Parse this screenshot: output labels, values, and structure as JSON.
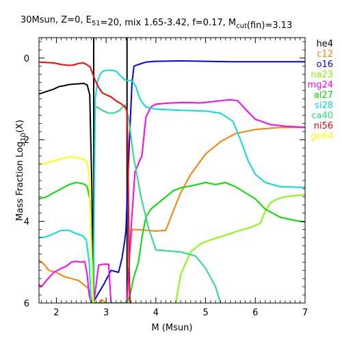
{
  "chart_data": {
    "type": "line",
    "title": "30Msun, Z=0, E51=20, mix 1.65-3.42, f=0.17, Mcut(fin)=3.13",
    "xlabel": "M (Msun)",
    "ylabel": "Mass Fraction Log10(X)",
    "xlim": [
      1.65,
      7
    ],
    "ylim": [
      -6,
      0.5
    ],
    "xticks": [
      2,
      3,
      4,
      5,
      6,
      7
    ],
    "yticks": [
      0,
      -2,
      -4,
      -6
    ],
    "ytick_labels": [
      "0",
      "2",
      "4",
      "6"
    ],
    "grid": false,
    "legend_position": "right",
    "vlines": [
      2.75,
      3.42
    ],
    "series": [
      {
        "name": "he4",
        "color": "#000000",
        "x": [
          1.65,
          1.8,
          1.95,
          2.05,
          2.15,
          2.25,
          2.35,
          2.45,
          2.55,
          2.62,
          2.67,
          2.71,
          2.75
        ],
        "y": [
          -0.88,
          -0.82,
          -0.76,
          -0.7,
          -0.68,
          -0.65,
          -0.64,
          -0.63,
          -0.62,
          -0.66,
          -0.9,
          -3.0,
          -6.0
        ]
      },
      {
        "name": "c12",
        "color": "#ff8000",
        "x": [
          1.65,
          1.75,
          1.85,
          2.0,
          2.15,
          2.3,
          2.45,
          2.55,
          2.62,
          2.67,
          2.7,
          2.72,
          2.85,
          2.9,
          2.95,
          3.0,
          3.05,
          3.42,
          3.47,
          3.52,
          3.6,
          3.8,
          4.0,
          4.2,
          4.35,
          4.5,
          4.7,
          5.0,
          5.3,
          5.6,
          6.0,
          6.5,
          7.0
        ],
        "y": [
          -4.95,
          -5.05,
          -5.2,
          -5.25,
          -5.35,
          -5.4,
          -5.45,
          -5.55,
          -5.62,
          -5.7,
          -5.85,
          -6.0,
          -6.0,
          -5.92,
          -5.95,
          -6.0,
          -6.0,
          -6.0,
          -4.8,
          -4.2,
          -4.2,
          -4.22,
          -4.24,
          -4.22,
          -3.75,
          -3.3,
          -2.85,
          -2.35,
          -2.05,
          -1.85,
          -1.75,
          -1.7,
          -1.7
        ]
      },
      {
        "name": "o16",
        "color": "#0000ff",
        "x": [
          2.72,
          2.78,
          2.85,
          2.95,
          3.1,
          3.25,
          3.32,
          3.37,
          3.4,
          3.42,
          3.47,
          3.52,
          3.56,
          3.62,
          3.8,
          4.0,
          4.5,
          5.0,
          5.5,
          6.0,
          6.5,
          7.0
        ],
        "y": [
          -6.0,
          -5.9,
          -5.75,
          -5.55,
          -5.2,
          -5.25,
          -4.9,
          -4.5,
          -4.2,
          -3.5,
          -2.0,
          -0.6,
          -0.2,
          -0.17,
          -0.1,
          -0.08,
          -0.07,
          -0.08,
          -0.09,
          -0.09,
          -0.09,
          -0.09
        ]
      },
      {
        "name": "na23",
        "color": "#80ff00",
        "x": [
          4.4,
          4.5,
          4.7,
          4.9,
          5.1,
          5.3,
          5.5,
          5.7,
          5.9,
          6.1,
          6.2,
          6.3,
          6.45,
          6.6,
          6.8,
          7.0
        ],
        "y": [
          -6.0,
          -5.3,
          -4.75,
          -4.55,
          -4.45,
          -4.38,
          -4.3,
          -4.22,
          -4.15,
          -4.05,
          -3.75,
          -3.55,
          -3.45,
          -3.4,
          -3.37,
          -3.35
        ]
      },
      {
        "name": "mg24",
        "color": "#ff00ff",
        "x": [
          1.65,
          1.7,
          1.8,
          1.95,
          2.1,
          2.2,
          2.3,
          2.4,
          2.5,
          2.57,
          2.62,
          2.66,
          2.7,
          2.75,
          2.85,
          2.95,
          3.05,
          3.1,
          3.42,
          3.5,
          3.58,
          3.66,
          3.72,
          3.8,
          3.9,
          4.0,
          4.3,
          4.6,
          4.9,
          5.2,
          5.5,
          5.65,
          5.8,
          6.0,
          6.3,
          6.6,
          7.0
        ],
        "y": [
          -5.55,
          -5.6,
          -5.45,
          -5.25,
          -5.15,
          -5.1,
          -5.0,
          -4.98,
          -5.0,
          -4.98,
          -5.3,
          -5.8,
          -6.0,
          -6.0,
          -5.07,
          -5.05,
          -5.05,
          -6.0,
          -6.0,
          -4.2,
          -2.8,
          -2.55,
          -2.4,
          -1.45,
          -1.2,
          -1.13,
          -1.1,
          -1.09,
          -1.1,
          -1.06,
          -1.02,
          -1.05,
          -1.25,
          -1.5,
          -1.63,
          -1.67,
          -1.7
        ]
      },
      {
        "name": "al27",
        "color": "#00e000",
        "x": [
          1.65,
          1.8,
          1.95,
          2.1,
          2.25,
          2.4,
          2.55,
          2.62,
          2.68,
          2.72,
          2.75,
          3.1,
          3.42,
          3.48,
          3.55,
          3.65,
          3.72,
          3.8,
          3.9,
          4.05,
          4.2,
          4.35,
          4.5,
          4.75,
          5.0,
          5.2,
          5.4,
          5.6,
          5.8,
          6.0,
          6.2,
          6.5,
          6.8,
          7.0
        ],
        "y": [
          -3.45,
          -3.4,
          -3.3,
          -3.2,
          -3.1,
          -3.05,
          -3.08,
          -3.15,
          -3.5,
          -5.0,
          -6.0,
          -6.0,
          -6.0,
          -5.8,
          -5.4,
          -5.0,
          -4.4,
          -3.9,
          -3.7,
          -3.55,
          -3.4,
          -3.25,
          -3.18,
          -3.12,
          -3.05,
          -3.1,
          -3.05,
          -3.15,
          -3.3,
          -3.45,
          -3.7,
          -3.9,
          -3.98,
          -4.02
        ]
      },
      {
        "name": "si28",
        "color": "#00e0e0",
        "x": [
          1.65,
          1.8,
          1.95,
          2.1,
          2.25,
          2.4,
          2.52,
          2.6,
          2.66,
          2.7,
          2.74,
          2.78,
          2.83,
          2.88,
          2.93,
          3.0,
          3.1,
          3.2,
          3.3,
          3.4,
          3.5,
          3.55,
          3.6,
          3.65,
          3.7,
          3.8,
          4.0,
          4.5,
          5.0,
          5.3,
          5.55,
          5.7,
          5.85,
          6.0,
          6.2,
          6.5,
          7.0
        ],
        "y": [
          -4.4,
          -4.38,
          -4.3,
          -4.22,
          -4.22,
          -4.3,
          -4.35,
          -4.45,
          -5.0,
          -6.0,
          -6.0,
          -1.0,
          -0.55,
          -0.4,
          -0.33,
          -0.3,
          -0.3,
          -0.32,
          -0.45,
          -0.55,
          -0.55,
          -0.6,
          -0.7,
          -0.9,
          -1.05,
          -1.2,
          -1.25,
          -1.28,
          -1.3,
          -1.35,
          -1.55,
          -2.0,
          -2.5,
          -2.85,
          -3.05,
          -3.15,
          -3.17
        ]
      },
      {
        "name": "ca40",
        "color": "#20e080",
        "x": [
          2.78,
          2.82,
          2.88,
          2.95,
          3.05,
          3.15,
          3.25,
          3.32,
          3.38,
          3.45,
          3.55,
          3.7,
          3.85,
          4.0,
          4.2,
          4.5,
          4.8,
          5.0,
          5.2,
          5.3
        ],
        "y": [
          -1.2,
          -1.2,
          -1.25,
          -1.3,
          -1.35,
          -1.35,
          -1.3,
          -1.22,
          -1.15,
          -1.45,
          -2.4,
          -3.4,
          -4.15,
          -4.7,
          -4.72,
          -4.75,
          -4.85,
          -5.15,
          -5.6,
          -6.0
        ]
      },
      {
        "name": "ni56",
        "color": "#ff0000",
        "x": [
          1.65,
          1.8,
          1.95,
          2.1,
          2.25,
          2.35,
          2.45,
          2.55,
          2.62,
          2.68,
          2.72,
          2.78,
          2.85,
          2.92,
          3.0,
          3.1,
          3.2,
          3.3,
          3.38,
          3.42,
          3.44,
          3.46,
          3.48
        ],
        "y": [
          -0.1,
          -0.11,
          -0.12,
          -0.16,
          -0.18,
          -0.17,
          -0.13,
          -0.12,
          -0.17,
          -0.22,
          -0.35,
          -0.55,
          -0.72,
          -0.85,
          -0.9,
          -0.95,
          -1.05,
          -1.12,
          -1.2,
          -1.3,
          -2.5,
          -5.0,
          -6.0
        ]
      },
      {
        "name": "ge64",
        "color": "#ffff00",
        "x": [
          1.65,
          1.75,
          1.85,
          2.0,
          2.15,
          2.3,
          2.45,
          2.55,
          2.62,
          2.66,
          2.7,
          2.74
        ],
        "y": [
          -2.58,
          -2.6,
          -2.55,
          -2.5,
          -2.45,
          -2.42,
          -2.45,
          -2.48,
          -2.55,
          -2.9,
          -4.5,
          -6.0
        ]
      }
    ]
  }
}
